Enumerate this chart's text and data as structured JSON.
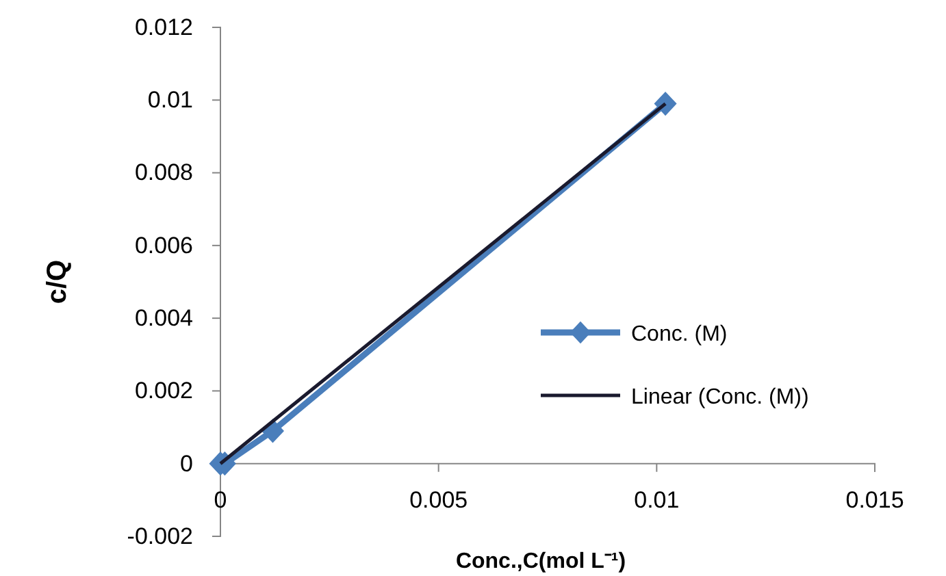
{
  "chart_data": {
    "type": "line",
    "xlabel": "Conc.,C(mol L⁻¹)",
    "ylabel": "c/Q",
    "xlim": [
      0,
      0.015
    ],
    "xticks": [
      0,
      0.005,
      0.01,
      0.015
    ],
    "ylim": [
      -0.002,
      0.012
    ],
    "yticks": [
      -0.002,
      0,
      0.002,
      0.004,
      0.006,
      0.008,
      0.01,
      0.012
    ],
    "grid": false,
    "legend": "right",
    "series": [
      {
        "name": "Conc. (M)",
        "color": "#4a7ebb",
        "marker": "diamond",
        "x": [
          0,
          0.0001,
          0.0012,
          0.0102
        ],
        "values": [
          0,
          0,
          0.0009,
          0.0099
        ]
      },
      {
        "name": "Linear (Conc. (M))",
        "color": "#1a1a2e",
        "marker": "none",
        "x": [
          0,
          0.0102
        ],
        "values": [
          0,
          0.0099
        ]
      }
    ]
  }
}
